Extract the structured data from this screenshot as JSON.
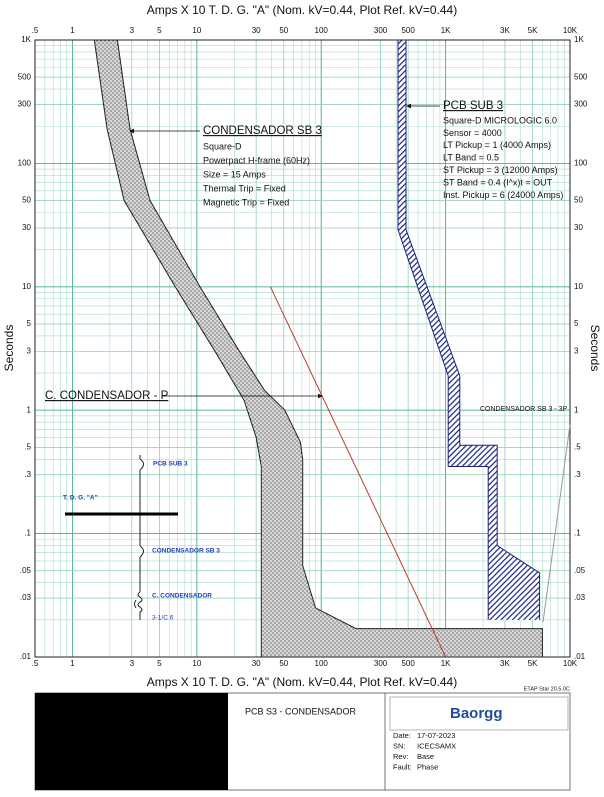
{
  "chart_data": {
    "type": "tcc",
    "x_label": "Amps  X  10   T. D. G. \"A\" (Nom. kV=0.44, Plot Ref. kV=0.44)",
    "y_label": "Seconds",
    "xscale": "log",
    "yscale": "log",
    "grid": true,
    "xlim": [
      0.5,
      10000
    ],
    "ylim": [
      0.01,
      1000
    ],
    "xticks": [
      {
        "value": 0.5,
        "label": ".5"
      },
      1,
      3,
      5,
      10,
      30,
      50,
      100,
      300,
      500,
      {
        "value": 1000,
        "label": "1K"
      },
      {
        "value": 3000,
        "label": "3K"
      },
      {
        "value": 5000,
        "label": "5K"
      },
      {
        "value": 10000,
        "label": "10K"
      }
    ],
    "yticks": [
      {
        "value": 0.01,
        "label": ".01"
      },
      {
        "value": 0.03,
        "label": ".03"
      },
      {
        "value": 0.05,
        "label": ".05"
      },
      {
        "value": 0.1,
        "label": ".1"
      },
      {
        "value": 0.3,
        "label": ".3"
      },
      {
        "value": 0.5,
        "label": ".5"
      },
      1,
      3,
      5,
      10,
      30,
      50,
      100,
      300,
      500,
      {
        "value": 1000,
        "label": "1K"
      }
    ],
    "series": [
      {
        "name": "CONDENSADOR SB 3",
        "color": "#222222",
        "fill": "dots",
        "settings": [
          "Square-D",
          "Powerpact H-frame (60Hz)",
          "Size = 15 Amps",
          "Thermal Trip = Fixed",
          "Magnetic Trip = Fixed"
        ],
        "min": {
          "x": [
            1.5,
            1.9,
            2.6,
            6.7,
            14,
            24,
            30,
            33,
            33
          ],
          "y": [
            1000,
            190,
            50,
            10,
            3,
            1.2,
            0.6,
            0.35,
            0.01
          ]
        },
        "max": {
          "x": [
            2.3,
            2.9,
            4.2,
            10.6,
            22,
            35,
            51,
            68,
            71,
            71,
            90,
            190,
            6000,
            6000
          ],
          "y": [
            1000,
            190,
            50,
            10,
            3,
            1.45,
            1,
            0.55,
            0.4,
            0.055,
            0.025,
            0.017,
            0.017,
            0.01
          ]
        }
      },
      {
        "name": "PCB SUB 3",
        "color": "#1a237e",
        "fill": "hatch",
        "settings": [
          "Square-D  MICROLOGIC 6.0",
          "Sensor = 4000",
          "LT Pickup = 1 (4000 Amps)",
          "LT Band = 0.5",
          "ST Pickup = 3 (12000 Amps)",
          "ST Band = 0.4  (I^x)t = OUT",
          "Inst. Pickup = 6 (24000 Amps)"
        ],
        "min": {
          "x": [
            414,
            414,
            1050,
            1050,
            2200,
            2200
          ],
          "y": [
            1000,
            29,
            1.9,
            0.35,
            0.35,
            0.02
          ]
        },
        "max": {
          "x": [
            480,
            480,
            1300,
            1300,
            2600,
            2600,
            5700,
            5700
          ],
          "y": [
            1000,
            29,
            1.9,
            0.52,
            0.52,
            0.08,
            0.048,
            0.02
          ]
        }
      },
      {
        "name": "C. CONDENSADOR - P",
        "color": "#c0392b",
        "x": [
          39,
          1000
        ],
        "values": [
          10,
          0.01
        ]
      }
    ],
    "annotations": [
      "CONDENSADOR SB 3 - 3P"
    ]
  },
  "software": "ETAP Star 20.5.0C",
  "one_line": {
    "labels": [
      "PCB SUB 3",
      "T. D. G. \"A\"",
      "CONDENSADOR SB 3",
      "C. CONDENSADOR",
      "3-1/C 6"
    ]
  },
  "title_block": {
    "title": "PCB S3 - CONDENSADOR",
    "logo": "Baorgg",
    "fields": [
      {
        "label": "Date:",
        "value": "17-07-2023"
      },
      {
        "label": "SN:",
        "value": "ICECSAMX"
      },
      {
        "label": "Rev:",
        "value": "Base"
      },
      {
        "label": "Fault:",
        "value": "Phase"
      }
    ]
  }
}
